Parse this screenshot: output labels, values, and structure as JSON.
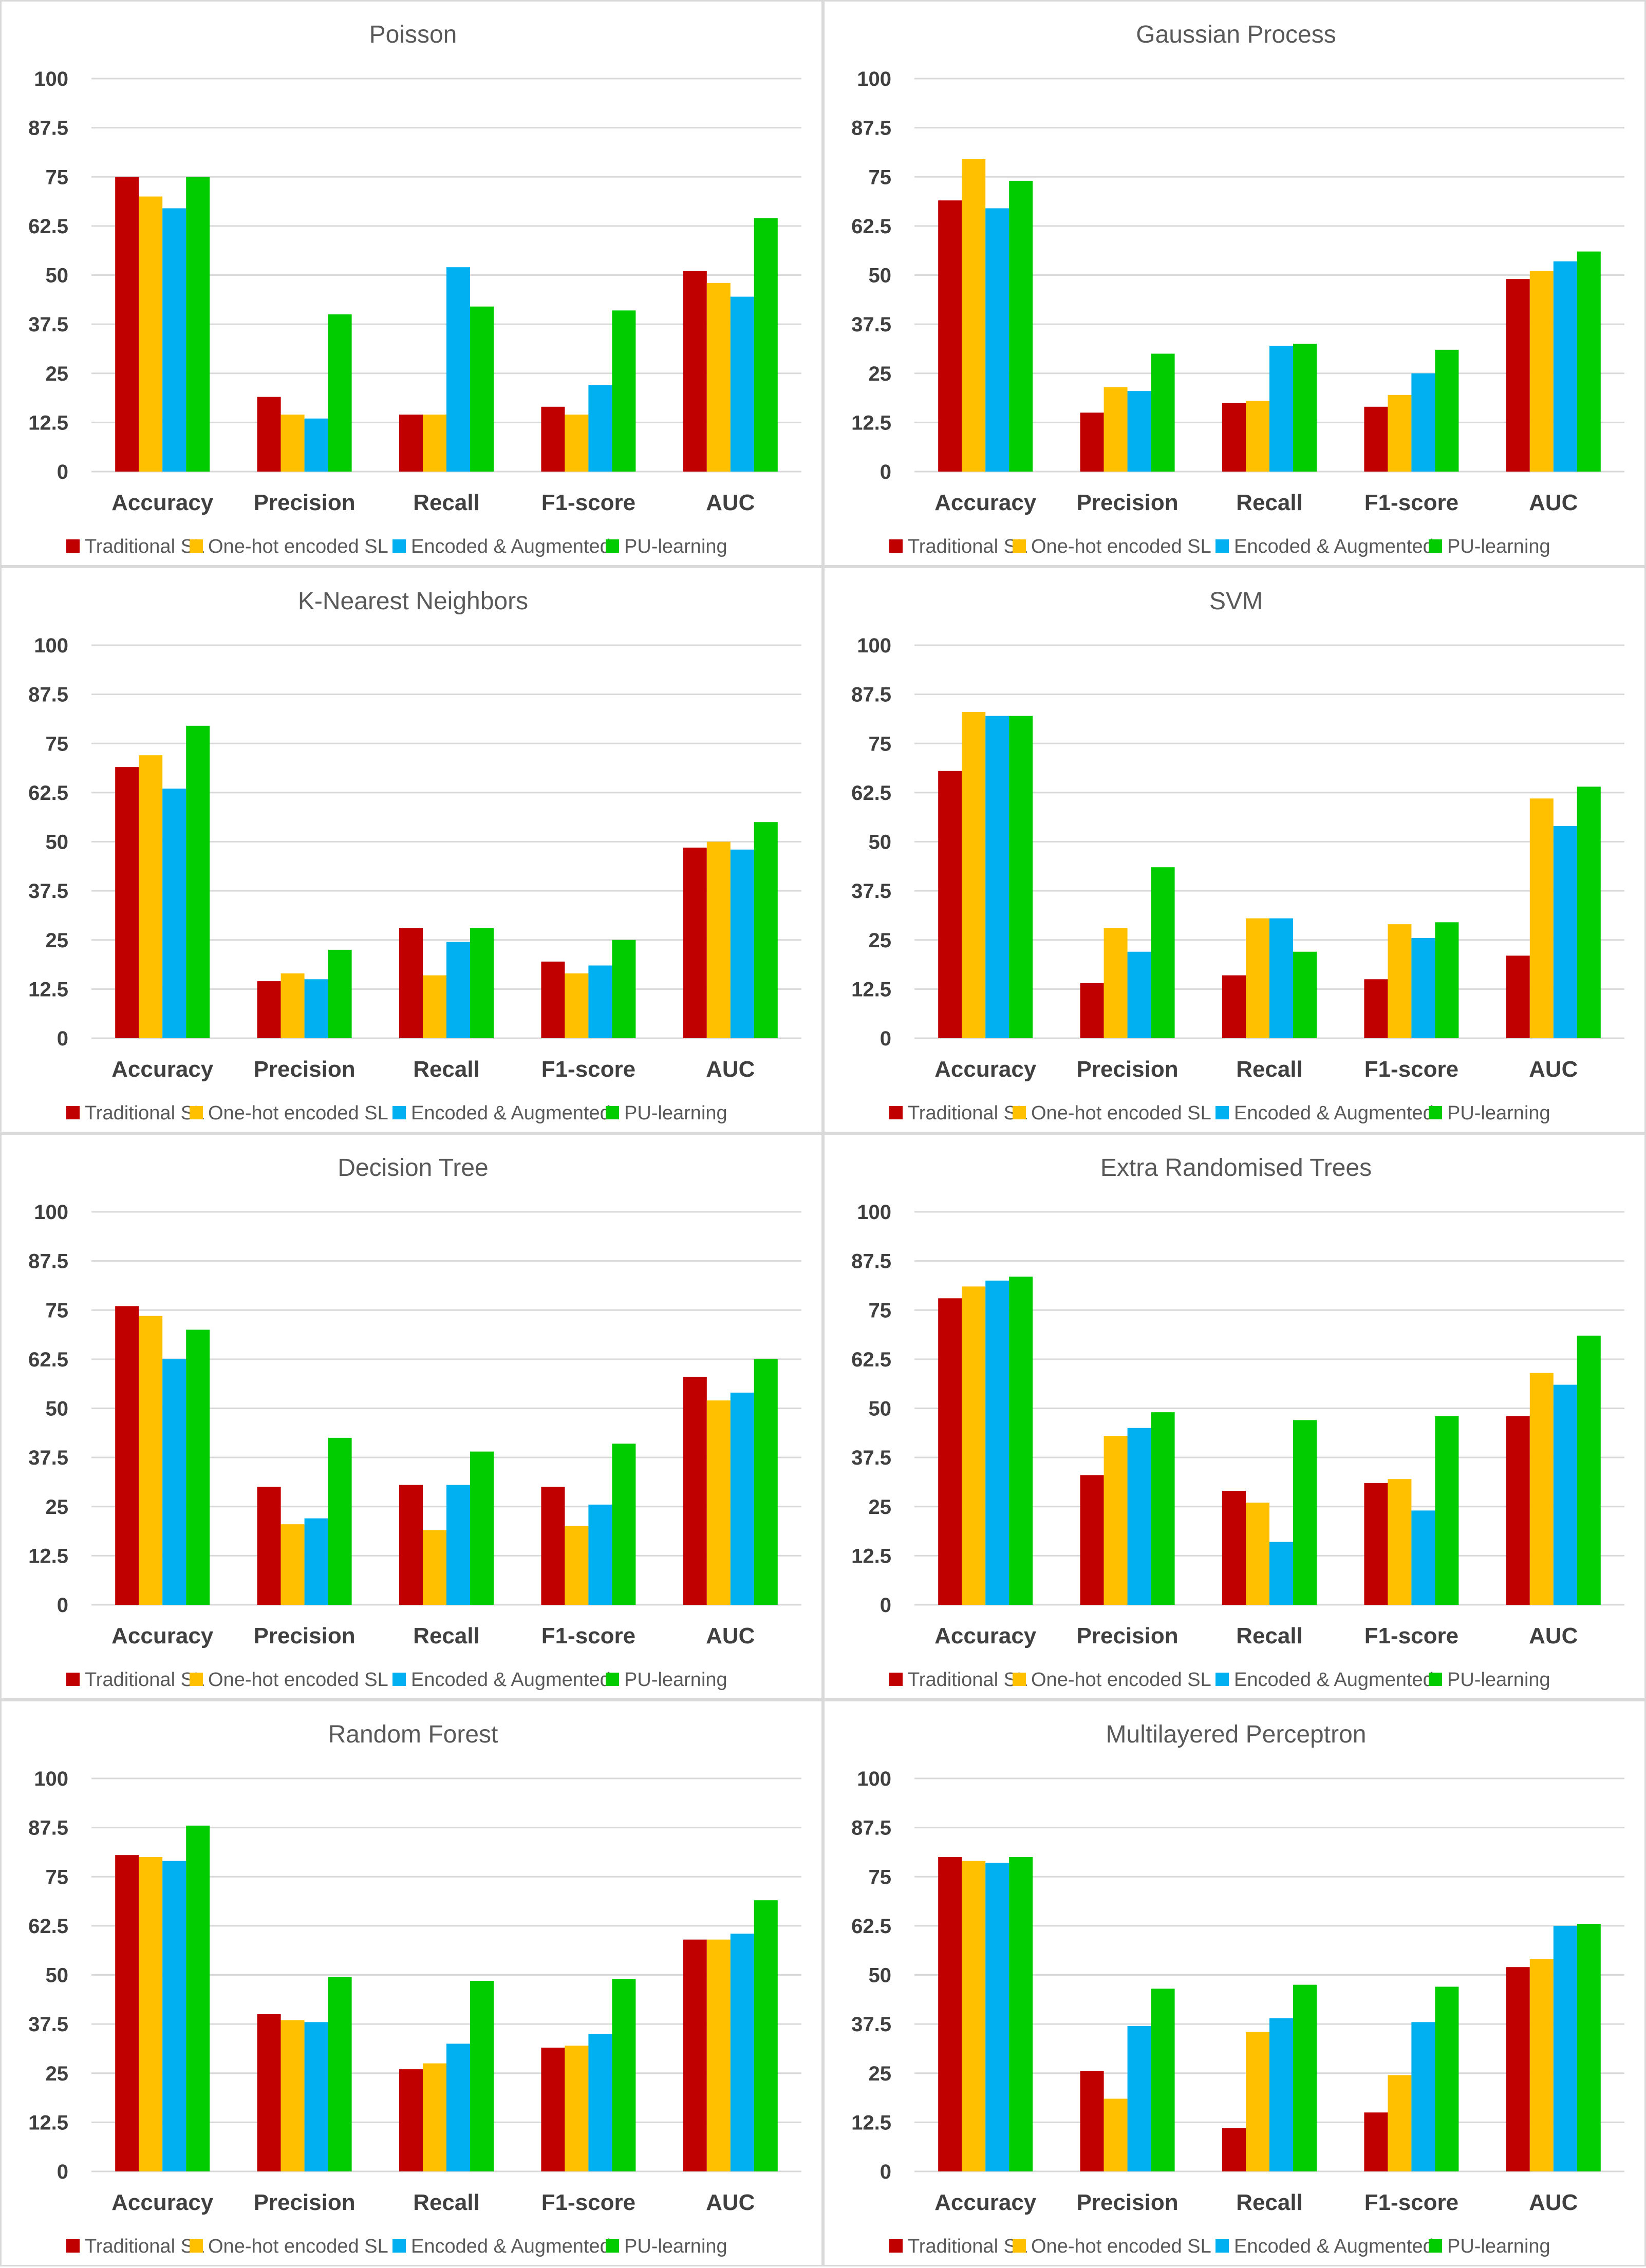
{
  "chart_data": [
    {
      "type": "bar",
      "title": "Poisson",
      "categories": [
        "Accuracy",
        "Precision",
        "Recall",
        "F1-score",
        "AUC"
      ],
      "yticks": [
        "0",
        "12.5",
        "25",
        "37.5",
        "50",
        "62.5",
        "75",
        "87.5",
        "100"
      ],
      "ylim": [
        0,
        100
      ],
      "series": [
        {
          "name": "Traditional SL",
          "values": [
            75,
            19,
            14.5,
            16.5,
            51
          ]
        },
        {
          "name": "One-hot encoded SL",
          "values": [
            70,
            14.5,
            14.5,
            14.5,
            48
          ]
        },
        {
          "name": "Encoded & Augmented",
          "values": [
            67,
            13.5,
            52,
            22,
            44.5
          ]
        },
        {
          "name": "PU-learning",
          "values": [
            75,
            40,
            42,
            41,
            64.5
          ]
        }
      ]
    },
    {
      "type": "bar",
      "title": "Gaussian Process",
      "categories": [
        "Accuracy",
        "Precision",
        "Recall",
        "F1-score",
        "AUC"
      ],
      "yticks": [
        "0",
        "12.5",
        "25",
        "37.5",
        "50",
        "62.5",
        "75",
        "87.5",
        "100"
      ],
      "ylim": [
        0,
        100
      ],
      "series": [
        {
          "name": "Traditional SL",
          "values": [
            69,
            15,
            17.5,
            16.5,
            49
          ]
        },
        {
          "name": "One-hot encoded SL",
          "values": [
            79.5,
            21.5,
            18,
            19.5,
            51
          ]
        },
        {
          "name": "Encoded & Augmented",
          "values": [
            67,
            20.5,
            32,
            25,
            53.5
          ]
        },
        {
          "name": "PU-learning",
          "values": [
            74,
            30,
            32.5,
            31,
            56
          ]
        }
      ]
    },
    {
      "type": "bar",
      "title": "K-Nearest Neighbors",
      "categories": [
        "Accuracy",
        "Precision",
        "Recall",
        "F1-score",
        "AUC"
      ],
      "yticks": [
        "0",
        "12.5",
        "25",
        "37.5",
        "50",
        "62.5",
        "75",
        "87.5",
        "100"
      ],
      "ylim": [
        0,
        100
      ],
      "series": [
        {
          "name": "Traditional SL",
          "values": [
            69,
            14.5,
            28,
            19.5,
            48.5
          ]
        },
        {
          "name": "One-hot encoded SL",
          "values": [
            72,
            16.5,
            16,
            16.5,
            50
          ]
        },
        {
          "name": "Encoded & Augmented",
          "values": [
            63.5,
            15,
            24.5,
            18.5,
            48
          ]
        },
        {
          "name": "PU-learning",
          "values": [
            79.5,
            22.5,
            28,
            25,
            55
          ]
        }
      ]
    },
    {
      "type": "bar",
      "title": "SVM",
      "categories": [
        "Accuracy",
        "Precision",
        "Recall",
        "F1-score",
        "AUC"
      ],
      "yticks": [
        "0",
        "12.5",
        "25",
        "37.5",
        "50",
        "62.5",
        "75",
        "87.5",
        "100"
      ],
      "ylim": [
        0,
        100
      ],
      "series": [
        {
          "name": "Traditional SL",
          "values": [
            68,
            14,
            16,
            15,
            21
          ]
        },
        {
          "name": "One-hot encoded SL",
          "values": [
            83,
            28,
            30.5,
            29,
            61
          ]
        },
        {
          "name": "Encoded & Augmented",
          "values": [
            82,
            22,
            30.5,
            25.5,
            54
          ]
        },
        {
          "name": "PU-learning",
          "values": [
            82,
            43.5,
            22,
            29.5,
            64
          ]
        }
      ]
    },
    {
      "type": "bar",
      "title": "Decision Tree",
      "categories": [
        "Accuracy",
        "Precision",
        "Recall",
        "F1-score",
        "AUC"
      ],
      "yticks": [
        "0",
        "12.5",
        "25",
        "37.5",
        "50",
        "62.5",
        "75",
        "87.5",
        "100"
      ],
      "ylim": [
        0,
        100
      ],
      "series": [
        {
          "name": "Traditional SL",
          "values": [
            76,
            30,
            30.5,
            30,
            58
          ]
        },
        {
          "name": "One-hot encoded SL",
          "values": [
            73.5,
            20.5,
            19,
            20,
            52
          ]
        },
        {
          "name": "Encoded & Augmented",
          "values": [
            62.5,
            22,
            30.5,
            25.5,
            54
          ]
        },
        {
          "name": "PU-learning",
          "values": [
            70,
            42.5,
            39,
            41,
            62.5
          ]
        }
      ]
    },
    {
      "type": "bar",
      "title": "Extra Randomised Trees",
      "categories": [
        "Accuracy",
        "Precision",
        "Recall",
        "F1-score",
        "AUC"
      ],
      "yticks": [
        "0",
        "12.5",
        "25",
        "37.5",
        "50",
        "62.5",
        "75",
        "87.5",
        "100"
      ],
      "ylim": [
        0,
        100
      ],
      "series": [
        {
          "name": "Traditional SL",
          "values": [
            78,
            33,
            29,
            31,
            48
          ]
        },
        {
          "name": "One-hot encoded SL",
          "values": [
            81,
            43,
            26,
            32,
            59
          ]
        },
        {
          "name": "Encoded & Augmented",
          "values": [
            82.5,
            45,
            16,
            24,
            56
          ]
        },
        {
          "name": "PU-learning",
          "values": [
            83.5,
            49,
            47,
            48,
            68.5
          ]
        }
      ]
    },
    {
      "type": "bar",
      "title": "Random Forest",
      "categories": [
        "Accuracy",
        "Precision",
        "Recall",
        "F1-score",
        "AUC"
      ],
      "yticks": [
        "0",
        "12.5",
        "25",
        "37.5",
        "50",
        "62.5",
        "75",
        "87.5",
        "100"
      ],
      "ylim": [
        0,
        100
      ],
      "series": [
        {
          "name": "Traditional SL",
          "values": [
            80.5,
            40,
            26,
            31.5,
            59
          ]
        },
        {
          "name": "One-hot encoded SL",
          "values": [
            80,
            38.5,
            27.5,
            32,
            59
          ]
        },
        {
          "name": "Encoded & Augmented",
          "values": [
            79,
            38,
            32.5,
            35,
            60.5
          ]
        },
        {
          "name": "PU-learning",
          "values": [
            88,
            49.5,
            48.5,
            49,
            69
          ]
        }
      ]
    },
    {
      "type": "bar",
      "title": "Multilayered Perceptron",
      "categories": [
        "Accuracy",
        "Precision",
        "Recall",
        "F1-score",
        "AUC"
      ],
      "yticks": [
        "0",
        "12.5",
        "25",
        "37.5",
        "50",
        "62.5",
        "75",
        "87.5",
        "100"
      ],
      "ylim": [
        0,
        100
      ],
      "series": [
        {
          "name": "Traditional SL",
          "values": [
            80,
            25.5,
            11,
            15,
            52
          ]
        },
        {
          "name": "One-hot encoded SL",
          "values": [
            79,
            18.5,
            35.5,
            24.5,
            54
          ]
        },
        {
          "name": "Encoded & Augmented",
          "values": [
            78.5,
            37,
            39,
            38,
            62.5
          ]
        },
        {
          "name": "PU-learning",
          "values": [
            80,
            46.5,
            47.5,
            47,
            63
          ]
        }
      ]
    }
  ],
  "colors": {
    "traditional_sl": "#c00000",
    "one_hot_encoded_sl": "#ffc000",
    "encoded_augmented": "#00b0f0",
    "pu_learning": "#00cc00",
    "gridline": "#d9d9d9",
    "text": "#404040"
  }
}
